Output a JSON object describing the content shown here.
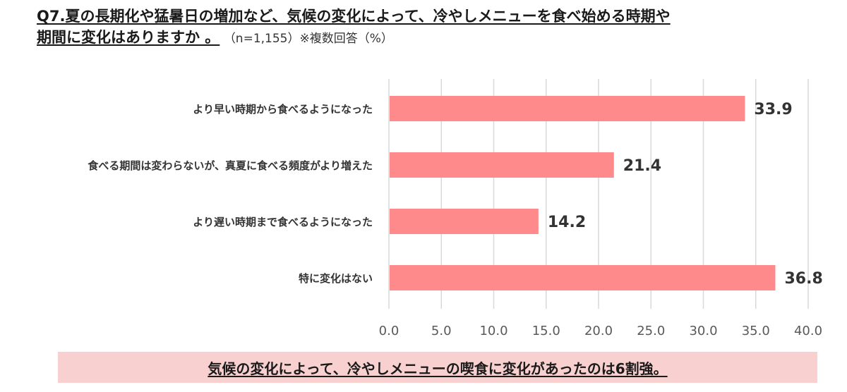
{
  "header": {
    "title_line1": "Q7.夏の長期化や猛暑日の増加など、気候の変化によって、冷やしメニューを食べ始める時期や",
    "title_line2": "期間に変化はありますか 。",
    "note": "（n=1,155）※複数回答（%）"
  },
  "chart_data": {
    "type": "bar",
    "orientation": "horizontal",
    "categories": [
      "より早い時期から食べるようになった",
      "食べる期間は変わらないが、真夏に食べる頻度がより増えた",
      "より遅い時期まで食べるようになった",
      "特に変化はない"
    ],
    "values": [
      33.9,
      21.4,
      14.2,
      36.8
    ],
    "value_labels": [
      "33.9",
      "21.4",
      "14.2",
      "36.8"
    ],
    "xlim": [
      0,
      40
    ],
    "xticks": [
      "0.0",
      "5.0",
      "10.0",
      "15.0",
      "20.0",
      "25.0",
      "30.0",
      "35.0",
      "40.0"
    ],
    "grid": true,
    "bar_color": "#fe8a8c",
    "grid_color": "#d9d9d9"
  },
  "footer": {
    "summary": "気候の変化によって、冷やしメニューの喫食に変化があったのは6割強。",
    "background": "#f8d0cf"
  }
}
